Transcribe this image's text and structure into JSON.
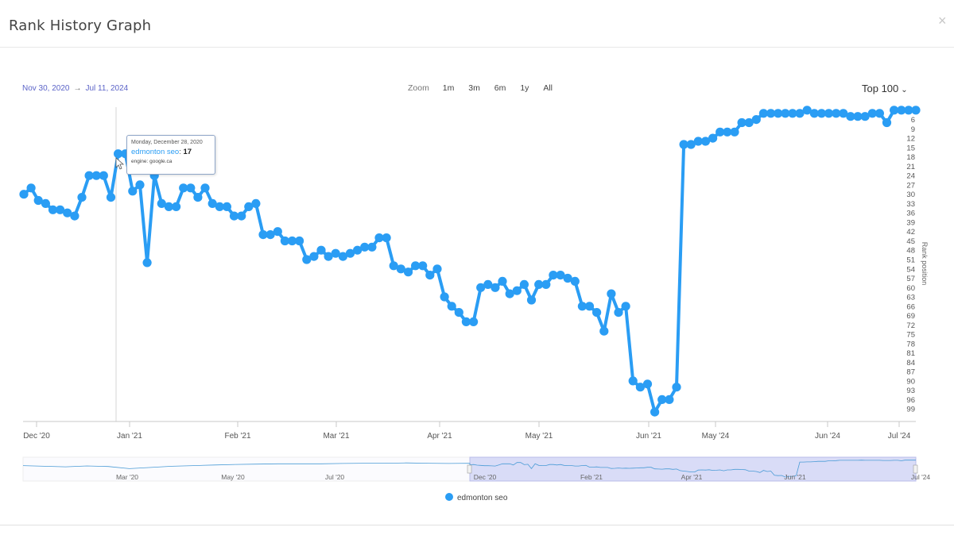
{
  "modal": {
    "title": "Rank History Graph",
    "close_label": "×"
  },
  "date_range": {
    "from": "Nov 30, 2020",
    "arrow": "→",
    "to": "Jul 11, 2024"
  },
  "zoom": {
    "label": "Zoom",
    "options": [
      "1m",
      "3m",
      "6m",
      "1y",
      "All"
    ]
  },
  "top_select": {
    "value": "Top 100"
  },
  "icons": {
    "close": "close-icon",
    "chevron": "chevron-down-icon",
    "cursor": "mouse-pointer-icon",
    "legend_marker": "circle-icon"
  },
  "colors": {
    "series": "#2a9df4",
    "navigator_fill": "#d9dcf7"
  },
  "tooltip": {
    "date": "Monday, December 28, 2020",
    "series": "edmonton seo",
    "value": "17",
    "engine": "engine: google.ca"
  },
  "legend": {
    "label": "edmonton seo"
  },
  "navigator": {
    "labels": [
      "Mar '20",
      "May '20",
      "Jul '20",
      "Dec '20",
      "Feb '21",
      "Apr '21",
      "Jun '21",
      "Jul '24"
    ]
  },
  "chart_data": {
    "type": "line",
    "title": "",
    "xlabel": "",
    "ylabel": "Rank position",
    "y_reversed": true,
    "ylim": [
      1,
      100
    ],
    "y_ticks": [
      6,
      9,
      12,
      15,
      18,
      21,
      24,
      27,
      30,
      33,
      36,
      39,
      42,
      45,
      48,
      51,
      54,
      57,
      60,
      63,
      66,
      69,
      72,
      75,
      78,
      81,
      84,
      87,
      90,
      93,
      96,
      99
    ],
    "x_tick_labels": [
      "Dec '20",
      "Jan '21",
      "Feb '21",
      "Mar '21",
      "Apr '21",
      "May '21",
      "Jun '21",
      "May '24",
      "Jun '24",
      "Jul '24"
    ],
    "grid": false,
    "legend_position": "bottom-center",
    "series": [
      {
        "name": "edmonton seo",
        "values": [
          30,
          28,
          32,
          33,
          35,
          35,
          36,
          37,
          31,
          24,
          24,
          24,
          31,
          17,
          17,
          29,
          27,
          52,
          24,
          33,
          34,
          34,
          28,
          28,
          31,
          28,
          33,
          34,
          34,
          37,
          37,
          34,
          33,
          43,
          43,
          42,
          45,
          45,
          45,
          51,
          50,
          48,
          50,
          49,
          50,
          49,
          48,
          47,
          47,
          44,
          44,
          53,
          54,
          55,
          53,
          53,
          56,
          54,
          63,
          66,
          68,
          71,
          71,
          60,
          59,
          60,
          58,
          62,
          61,
          59,
          64,
          59,
          59,
          56,
          56,
          57,
          58,
          66,
          66,
          68,
          74,
          62,
          68,
          66,
          90,
          92,
          91,
          100,
          96,
          96,
          92,
          14,
          14,
          13,
          13,
          12,
          10,
          10,
          10,
          7,
          7,
          6,
          4,
          4,
          4,
          4,
          4,
          4,
          3,
          4,
          4,
          4,
          4,
          4,
          5,
          5,
          5,
          4,
          4,
          7,
          3,
          3,
          3,
          3
        ]
      }
    ]
  }
}
